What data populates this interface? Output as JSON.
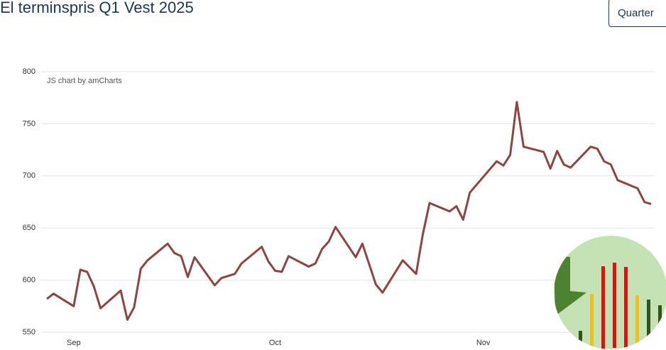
{
  "title": "El terminspris Q1 Vest 2025",
  "button": "Quarter",
  "chart_data": {
    "type": "line",
    "credit": "JS chart by amCharts",
    "x": [
      0,
      1,
      4,
      5,
      6,
      7,
      8,
      11,
      12,
      13,
      14,
      15,
      18,
      19,
      20,
      21,
      22,
      25,
      26,
      28,
      29,
      32,
      33,
      34,
      35,
      36,
      39,
      40,
      41,
      42,
      43,
      46,
      47,
      49,
      50,
      53,
      55,
      56,
      57,
      60,
      61,
      62,
      63,
      67,
      68,
      69,
      70,
      71,
      74,
      75,
      76,
      77,
      78,
      81,
      82,
      83,
      84,
      85,
      88,
      89,
      90
    ],
    "values": [
      582,
      587,
      575,
      610,
      608,
      594,
      573,
      590,
      562,
      574,
      611,
      619,
      635,
      626,
      623,
      603,
      622,
      595,
      602,
      606,
      616,
      632,
      618,
      609,
      608,
      623,
      613,
      616,
      630,
      637,
      651,
      622,
      635,
      596,
      588,
      619,
      606,
      644,
      674,
      666,
      671,
      658,
      684,
      714,
      710,
      720,
      771,
      728,
      723,
      707,
      724,
      711,
      708,
      728,
      726,
      714,
      711,
      696,
      688,
      675,
      673
    ],
    "color": "#8f4343",
    "xlim": [
      -1,
      91
    ],
    "xticks": [
      {
        "value": 4,
        "label": "Sep"
      },
      {
        "value": 34,
        "label": "Oct"
      },
      {
        "value": 65,
        "label": "Nov"
      }
    ],
    "ylim": [
      550,
      800
    ],
    "yticks": [
      550,
      600,
      650,
      700,
      750,
      800
    ],
    "grid": true
  }
}
